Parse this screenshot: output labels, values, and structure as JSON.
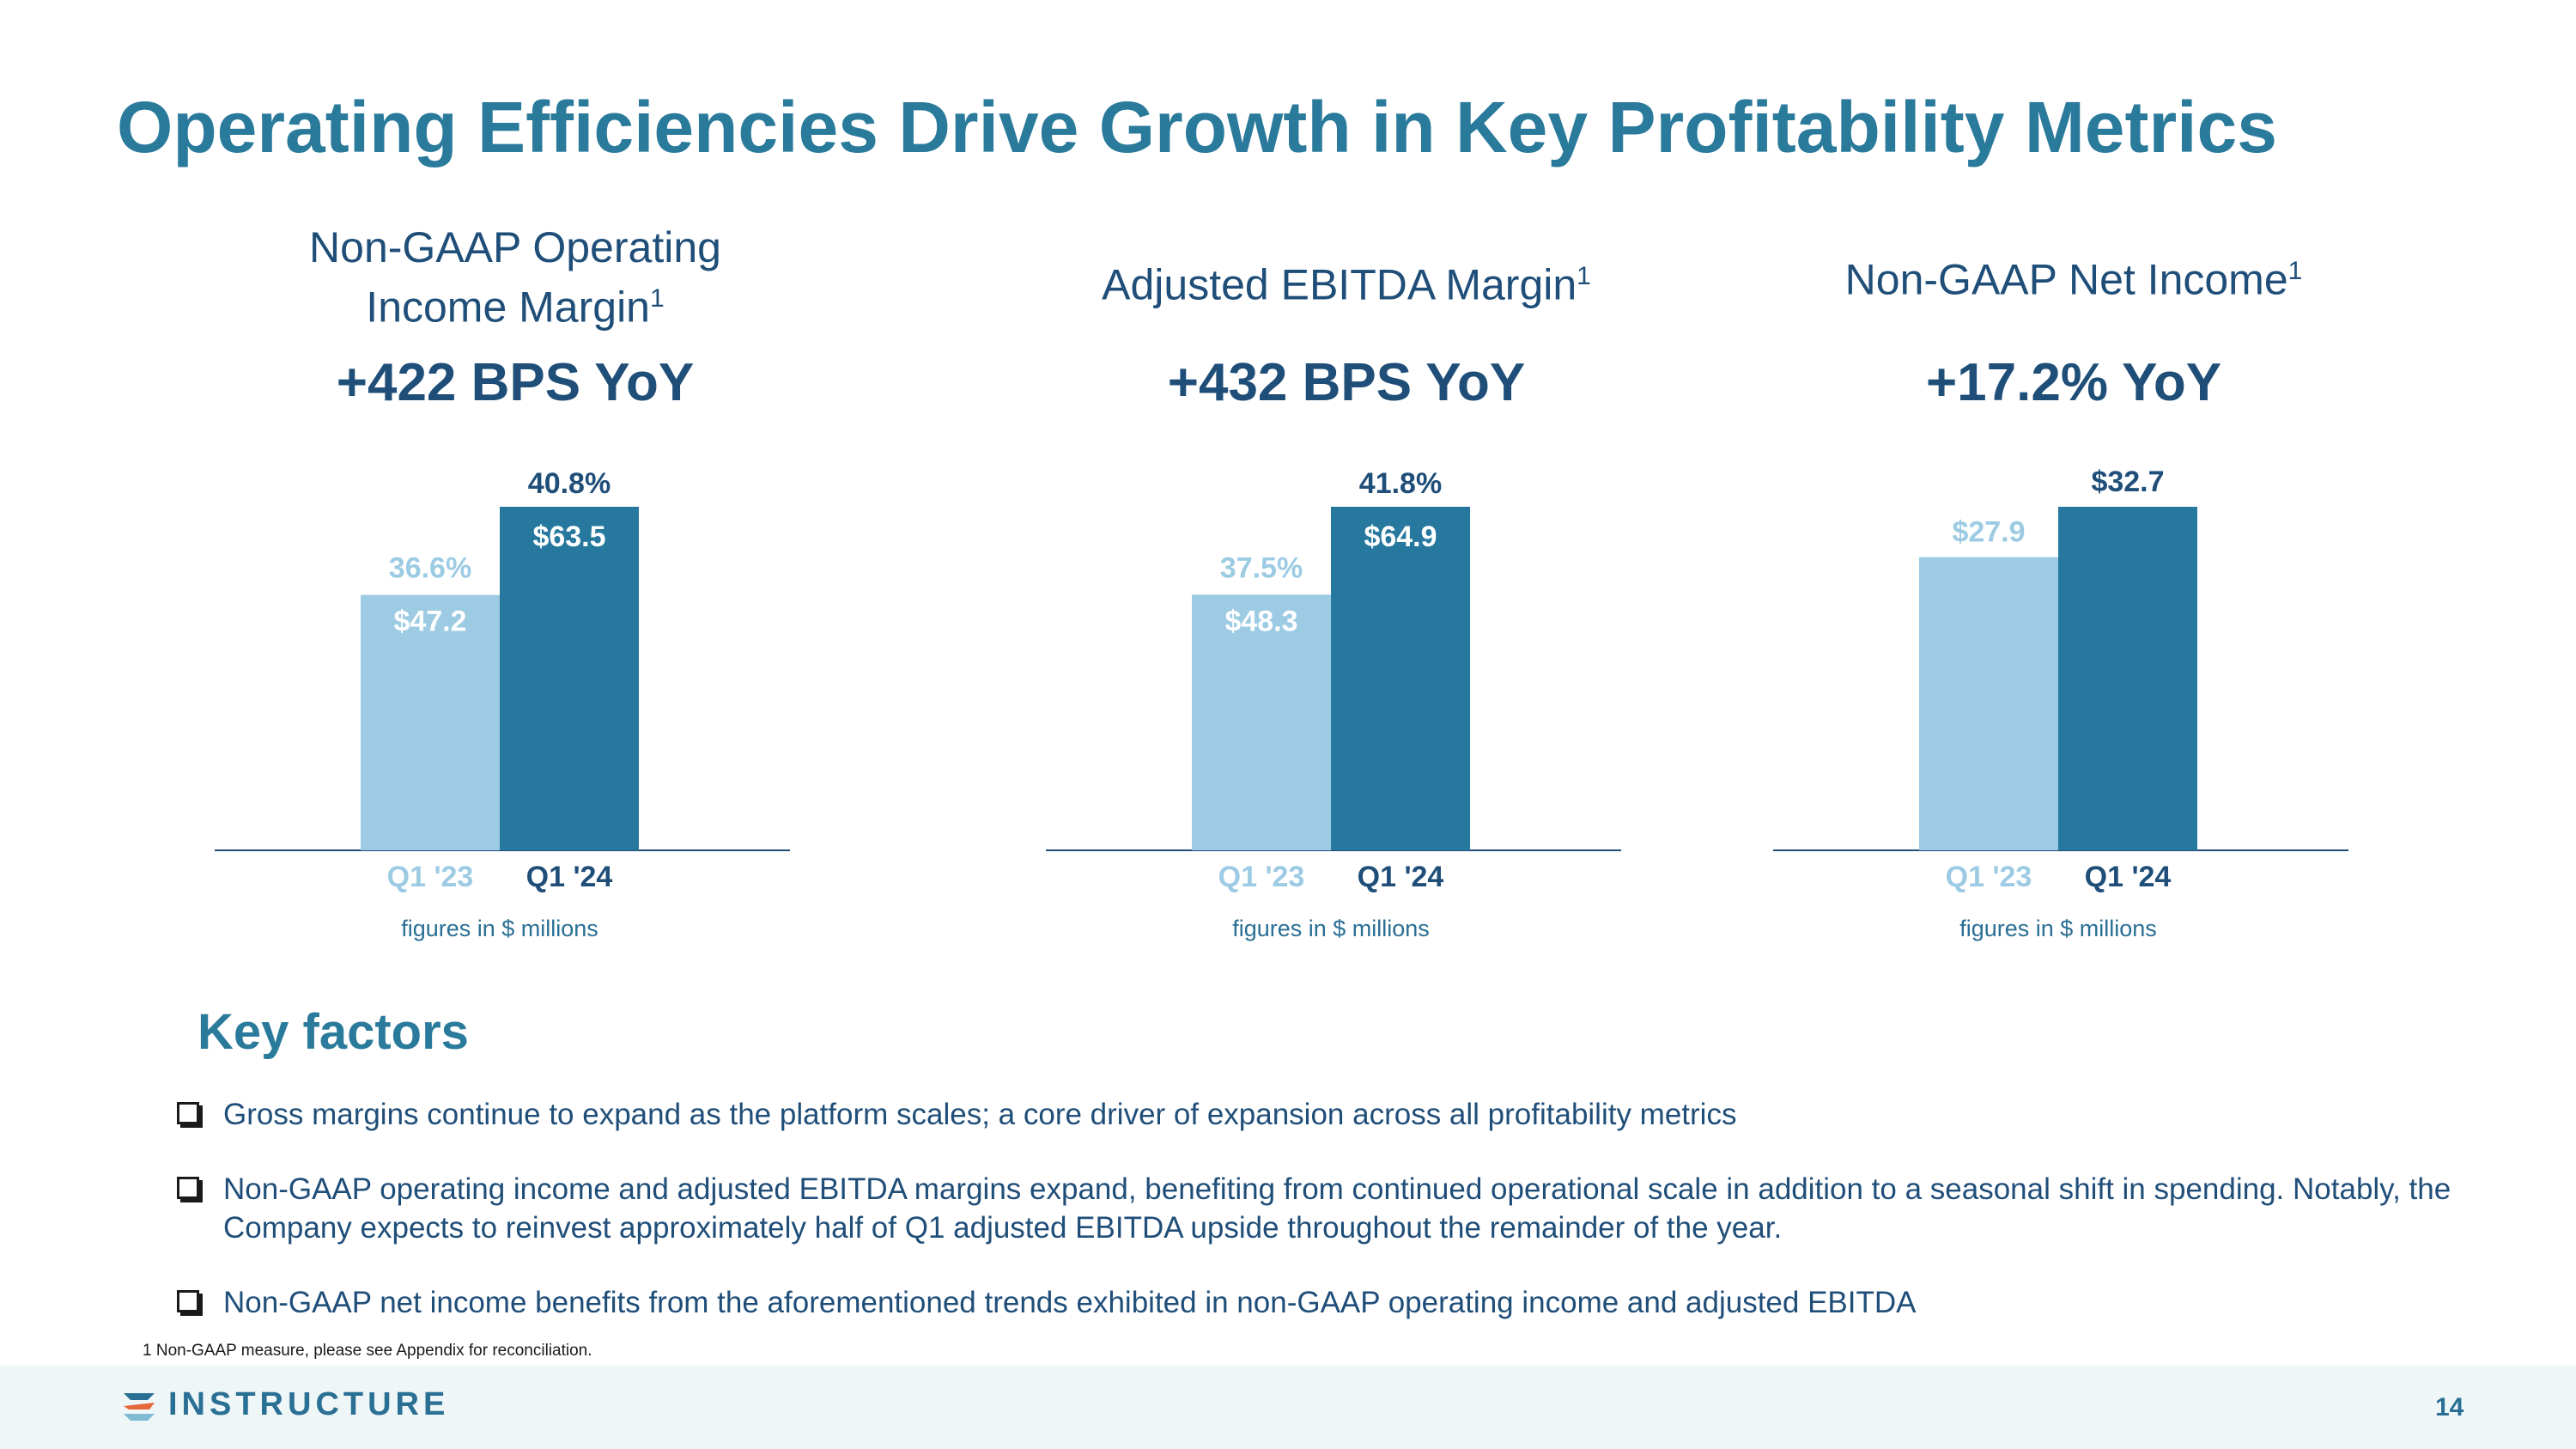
{
  "title": "Operating Efficiencies Drive Growth in Key Profitability Metrics",
  "colors": {
    "accent": "#2a7a9b",
    "navy": "#1f4e79",
    "bar_old": "#9ccbe3",
    "bar_new": "#26789e"
  },
  "chart_data": [
    {
      "type": "bar",
      "title": "Non-GAAP Operating Income Margin",
      "title_sup": "1",
      "yoy": "+422 BPS YoY",
      "categories": [
        "Q1 '23",
        "Q1 '24"
      ],
      "values": [
        47.2,
        63.5
      ],
      "value_labels": [
        "$47.2",
        "$63.5"
      ],
      "margins": [
        "36.6%",
        "40.8%"
      ],
      "scale_max": 63.5,
      "note": "figures in $ millions"
    },
    {
      "type": "bar",
      "title": "Adjusted EBITDA Margin",
      "title_sup": "1",
      "yoy": "+432 BPS YoY",
      "categories": [
        "Q1 '23",
        "Q1 '24"
      ],
      "values": [
        48.3,
        64.9
      ],
      "value_labels": [
        "$48.3",
        "$64.9"
      ],
      "margins": [
        "37.5%",
        "41.8%"
      ],
      "scale_max": 64.9,
      "note": "figures in $ millions"
    },
    {
      "type": "bar",
      "title": "Non-GAAP Net Income",
      "title_sup": "1",
      "yoy": "+17.2% YoY",
      "categories": [
        "Q1 '23",
        "Q1 '24"
      ],
      "values": [
        27.9,
        32.7
      ],
      "value_labels": [
        "$27.9",
        "$32.7"
      ],
      "margins": [],
      "scale_max": 32.7,
      "note": "figures in $ millions"
    }
  ],
  "key_factors": {
    "heading": "Key factors",
    "items": [
      "Gross margins continue to expand as the platform scales; a core driver of expansion across all profitability metrics",
      "Non-GAAP operating income and adjusted EBITDA margins expand, benefiting from continued operational scale in addition to a seasonal shift in spending. Notably, the Company expects to reinvest approximately half of Q1 adjusted EBITDA upside throughout the remainder of the year.",
      "Non-GAAP net income benefits from the aforementioned trends exhibited in non-GAAP operating income and adjusted EBITDA"
    ]
  },
  "footnote": "1 Non-GAAP measure, please see Appendix for reconciliation.",
  "footer": {
    "logo_text": "INSTRUCTURE",
    "logo_icon": "instructure-logo-icon",
    "page_number": "14"
  }
}
